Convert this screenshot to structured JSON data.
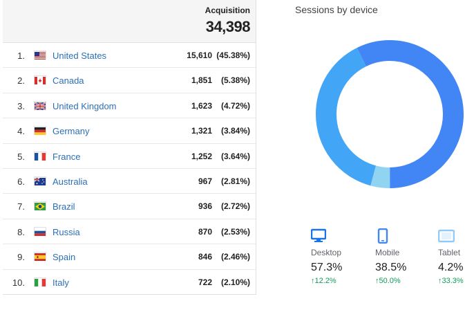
{
  "acquisition": {
    "label": "Acquisition",
    "total": "34,398"
  },
  "countries": [
    {
      "rank": "1.",
      "flag": "us-flag-icon",
      "name": "United States",
      "value": "15,610",
      "pct": "(45.38%)"
    },
    {
      "rank": "2.",
      "flag": "ca-flag-icon",
      "name": "Canada",
      "value": "1,851",
      "pct": "(5.38%)"
    },
    {
      "rank": "3.",
      "flag": "gb-flag-icon",
      "name": "United Kingdom",
      "value": "1,623",
      "pct": "(4.72%)"
    },
    {
      "rank": "4.",
      "flag": "de-flag-icon",
      "name": "Germany",
      "value": "1,321",
      "pct": "(3.84%)"
    },
    {
      "rank": "5.",
      "flag": "fr-flag-icon",
      "name": "France",
      "value": "1,252",
      "pct": "(3.64%)"
    },
    {
      "rank": "6.",
      "flag": "au-flag-icon",
      "name": "Australia",
      "value": "967",
      "pct": "(2.81%)"
    },
    {
      "rank": "7.",
      "flag": "br-flag-icon",
      "name": "Brazil",
      "value": "936",
      "pct": "(2.72%)"
    },
    {
      "rank": "8.",
      "flag": "ru-flag-icon",
      "name": "Russia",
      "value": "870",
      "pct": "(2.53%)"
    },
    {
      "rank": "9.",
      "flag": "es-flag-icon",
      "name": "Spain",
      "value": "846",
      "pct": "(2.46%)"
    },
    {
      "rank": "10.",
      "flag": "it-flag-icon",
      "name": "Italy",
      "value": "722",
      "pct": "(2.10%)"
    }
  ],
  "sessions": {
    "title": "Sessions by device",
    "devices": [
      {
        "name": "Desktop",
        "icon": "desktop-icon",
        "pct": "57.3%",
        "change": "12.2%",
        "share": 0.573,
        "color": "#4285f4"
      },
      {
        "name": "Mobile",
        "icon": "mobile-icon",
        "pct": "38.5%",
        "change": "50.0%",
        "share": 0.385,
        "color": "#42a5f5"
      },
      {
        "name": "Tablet",
        "icon": "tablet-icon",
        "pct": "4.2%",
        "change": "33.3%",
        "share": 0.042,
        "color": "#90d4f2"
      }
    ],
    "change_color": "#0f9d58"
  }
}
